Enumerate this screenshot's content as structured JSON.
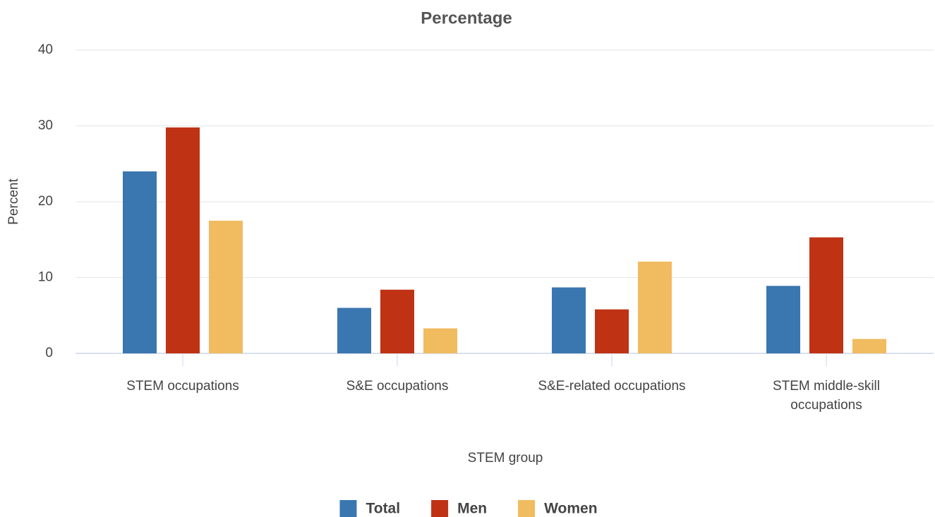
{
  "chart_data": {
    "type": "bar",
    "title": "Percentage",
    "xlabel": "STEM group",
    "ylabel": "Percent",
    "categories": [
      "STEM occupations",
      "S&E occupations",
      "S&E-related occupations",
      "STEM middle-skill occupations"
    ],
    "series": [
      {
        "name": "Total",
        "color": "#3a76b0",
        "values": [
          24.0,
          6.0,
          8.7,
          8.9
        ]
      },
      {
        "name": "Men",
        "color": "#bf3214",
        "values": [
          29.8,
          8.4,
          5.8,
          15.3
        ]
      },
      {
        "name": "Women",
        "color": "#f1bb60",
        "values": [
          17.5,
          3.3,
          12.1,
          1.9
        ]
      }
    ],
    "ylim": [
      0,
      40
    ],
    "yticks": [
      0,
      10,
      20,
      30,
      40
    ],
    "grid": true,
    "legend": "bottom"
  }
}
